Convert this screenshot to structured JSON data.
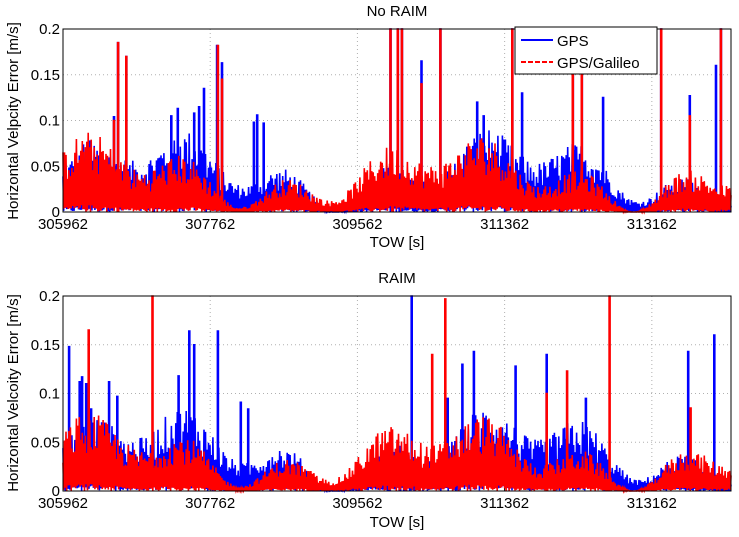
{
  "chart_data": [
    {
      "type": "line",
      "title": "No RAIM",
      "xlabel": "TOW [s]",
      "ylabel": "Horizontal Velpcity Error [m/s]",
      "xlim": [
        305962,
        314130
      ],
      "ylim": [
        0,
        0.2
      ],
      "xticks": [
        305962,
        307762,
        309562,
        311362,
        313162
      ],
      "xtick_labels": [
        "305962",
        "307762",
        "309562",
        "311362",
        "313162"
      ],
      "yticks": [
        0,
        0.05,
        0.1,
        0.15,
        0.2
      ],
      "ytick_labels": [
        "0",
        "0.05",
        "0.1",
        "0.15",
        "0.2"
      ],
      "grid": true,
      "legend_position": "upper right",
      "series": [
        {
          "name": "GPS",
          "color": "#0000ff",
          "style": "solid",
          "baseline_mean": 0.028,
          "spikes": [
            [
              306200,
              0.073
            ],
            [
              306580,
              0.104
            ],
            [
              306630,
              0.185
            ],
            [
              306730,
              0.17
            ],
            [
              307280,
              0.105
            ],
            [
              307360,
              0.113
            ],
            [
              307560,
              0.108
            ],
            [
              307620,
              0.115
            ],
            [
              307680,
              0.135
            ],
            [
              307840,
              0.182
            ],
            [
              307900,
              0.163
            ],
            [
              308290,
              0.098
            ],
            [
              308330,
              0.106
            ],
            [
              308410,
              0.097
            ],
            [
              309960,
              0.2
            ],
            [
              310050,
              0.2
            ],
            [
              310100,
              0.2
            ],
            [
              310340,
              0.165
            ],
            [
              310570,
              0.2
            ],
            [
              311020,
              0.12
            ],
            [
              311100,
              0.105
            ],
            [
              311450,
              0.2
            ],
            [
              311570,
              0.13
            ],
            [
              312190,
              0.2
            ],
            [
              312300,
              0.2
            ],
            [
              312560,
              0.125
            ],
            [
              313270,
              0.2
            ],
            [
              313620,
              0.127
            ],
            [
              313940,
              0.16
            ],
            [
              314000,
              0.2
            ]
          ]
        },
        {
          "name": "GPS/Galileo",
          "color": "#ff0000",
          "style": "dashed",
          "baseline_mean": 0.026,
          "spikes": [
            [
              306200,
              0.065
            ],
            [
              306580,
              0.1
            ],
            [
              306630,
              0.185
            ],
            [
              306730,
              0.17
            ],
            [
              307850,
              0.182
            ],
            [
              307900,
              0.145
            ],
            [
              309960,
              0.2
            ],
            [
              310050,
              0.2
            ],
            [
              310100,
              0.2
            ],
            [
              310340,
              0.14
            ],
            [
              310570,
              0.2
            ],
            [
              311450,
              0.2
            ],
            [
              312190,
              0.2
            ],
            [
              312300,
              0.2
            ],
            [
              313270,
              0.2
            ],
            [
              313620,
              0.105
            ],
            [
              314000,
              0.2
            ]
          ]
        }
      ]
    },
    {
      "type": "line",
      "title": "RAIM",
      "xlabel": "TOW [s]",
      "ylabel": "Horizontal Velcoity Error [m/s]",
      "xlim": [
        305962,
        314130
      ],
      "ylim": [
        0,
        0.2
      ],
      "xticks": [
        305962,
        307762,
        309562,
        311362,
        313162
      ],
      "xtick_labels": [
        "305962",
        "307762",
        "309562",
        "311362",
        "313162"
      ],
      "yticks": [
        0,
        0.05,
        0.1,
        0.15,
        0.2
      ],
      "ytick_labels": [
        "0",
        "0.05",
        "0.1",
        "0.15",
        "0.2"
      ],
      "grid": true,
      "series": [
        {
          "name": "GPS",
          "color": "#0000ff",
          "style": "solid",
          "baseline_mean": 0.027,
          "spikes": [
            [
              306030,
              0.148
            ],
            [
              306160,
              0.112
            ],
            [
              306190,
              0.117
            ],
            [
              306240,
              0.11
            ],
            [
              306300,
              0.084
            ],
            [
              306520,
              0.112
            ],
            [
              306620,
              0.097
            ],
            [
              307370,
              0.118
            ],
            [
              307500,
              0.164
            ],
            [
              307560,
              0.15
            ],
            [
              307850,
              0.164
            ],
            [
              308130,
              0.091
            ],
            [
              308220,
              0.084
            ],
            [
              310220,
              0.2
            ],
            [
              310660,
              0.095
            ],
            [
              310840,
              0.13
            ],
            [
              310980,
              0.143
            ],
            [
              311490,
              0.128
            ],
            [
              311870,
              0.14
            ],
            [
              312350,
              0.095
            ],
            [
              313600,
              0.143
            ],
            [
              313920,
              0.16
            ]
          ]
        },
        {
          "name": "GPS/Galileo",
          "color": "#ff0000",
          "style": "dashed",
          "baseline_mean": 0.024,
          "spikes": [
            [
              306270,
              0.165
            ],
            [
              307050,
              0.2
            ],
            [
              310470,
              0.14
            ],
            [
              310630,
              0.197
            ],
            [
              311870,
              0.1
            ],
            [
              312120,
              0.123
            ],
            [
              312640,
              0.2
            ],
            [
              313630,
              0.085
            ]
          ]
        }
      ]
    }
  ],
  "legend": {
    "items": [
      {
        "label": "GPS",
        "color": "#0000ff",
        "style": "solid"
      },
      {
        "label": "GPS/Galileo",
        "color": "#ff0000",
        "style": "dashed"
      }
    ]
  },
  "colors": {
    "gps": "#0000ff",
    "gps_galileo": "#ff0000",
    "grid": "#b0b0b0",
    "axes": "#000000"
  }
}
